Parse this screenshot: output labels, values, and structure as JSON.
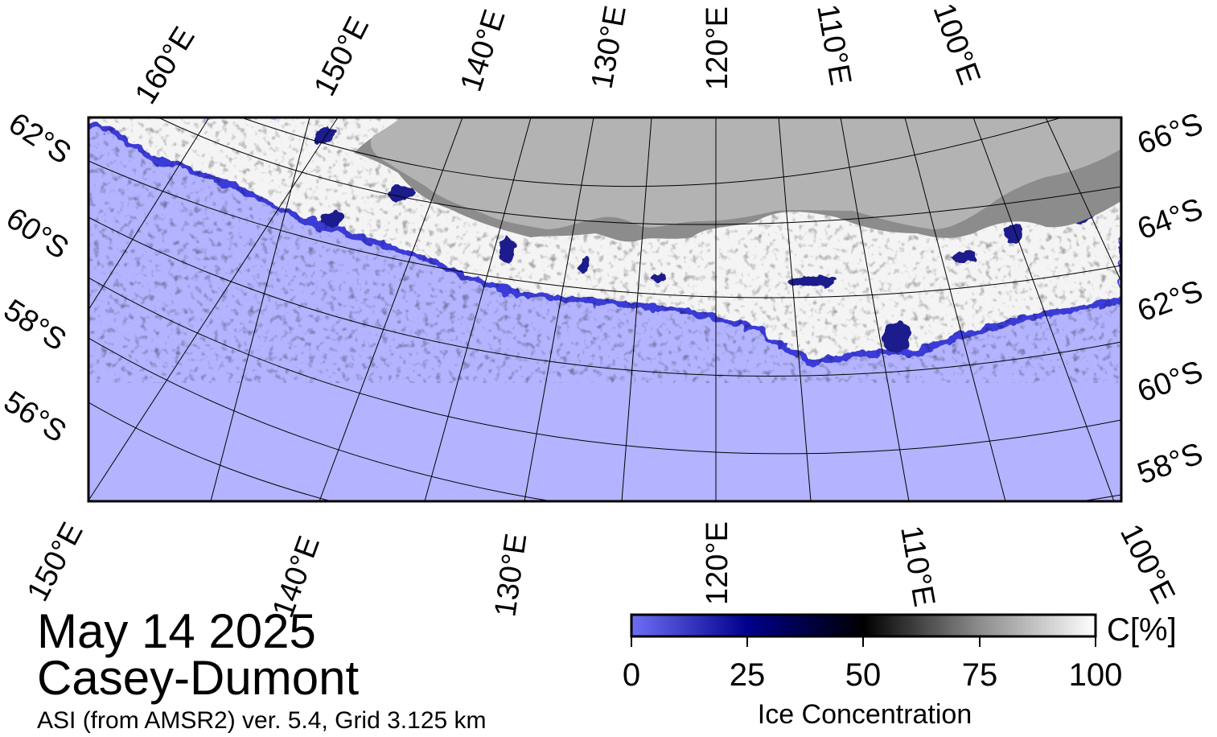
{
  "map": {
    "date": "May 14 2025",
    "region": "Casey-Dumont",
    "product": "ASI (from AMSR2) ver. 5.4,  Grid 3.125 km",
    "top_lon_labels": [
      "160°E",
      "150°E",
      "140°E",
      "130°E",
      "120°E",
      "110°E",
      "100°E"
    ],
    "bottom_lon_labels": [
      "150°E",
      "140°E",
      "130°E",
      "120°E",
      "110°E",
      "100°E"
    ],
    "left_lat_labels": [
      "62°S",
      "60°S",
      "58°S",
      "56°S"
    ],
    "right_lat_labels": [
      "66°S",
      "64°S",
      "62°S",
      "60°S",
      "58°S"
    ],
    "colors": {
      "ocean": "#b3b3ff",
      "land": "#b3b3b3",
      "ice_shelf": "#8c8c8c",
      "ice_high": "#ffffff",
      "ice_low": "#0000aa"
    }
  },
  "colorbar": {
    "title": "Ice Concentration",
    "unit": "C[%]",
    "ticks": [
      "0",
      "25",
      "50",
      "75",
      "100"
    ],
    "stops": [
      {
        "value": 0,
        "color": "#6e6ef5"
      },
      {
        "value": 25,
        "color": "#00008c"
      },
      {
        "value": 50,
        "color": "#000000"
      },
      {
        "value": 75,
        "color": "#8c8c8c"
      },
      {
        "value": 100,
        "color": "#ffffff"
      }
    ]
  }
}
